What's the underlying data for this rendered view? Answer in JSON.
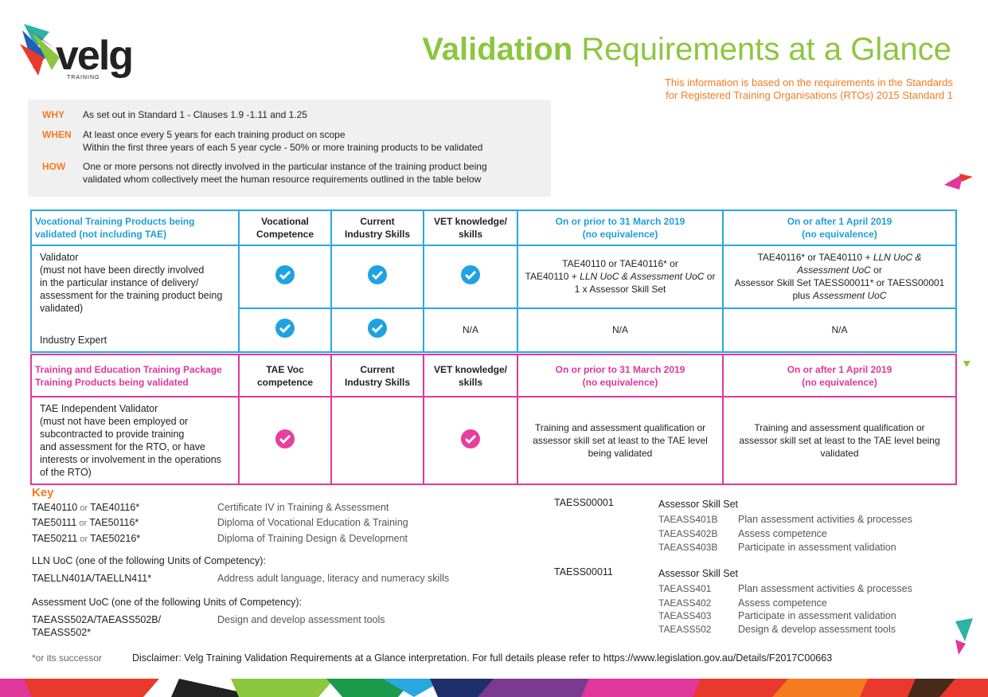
{
  "logo": {
    "name": "velg",
    "tagline": "TRAINING"
  },
  "header": {
    "title_highlight": "Validation",
    "title": "Requirements at a Glance",
    "subtitle": [
      "This information is based on the requirements in the Standards",
      "for Registered Training Organisations (RTOs) 2015 Standard 1"
    ]
  },
  "info": [
    {
      "label": "WHY",
      "lines": [
        "As set out in Standard 1 - Clauses 1.9 -1.11 and 1.25"
      ]
    },
    {
      "label": "WHEN",
      "lines": [
        "At least once every 5 years for each training product on scope",
        "Within the first three years of each 5 year cycle - 50% or more training products to be validated"
      ]
    },
    {
      "label": "HOW",
      "lines": [
        "One or more persons not directly involved in the particular instance of the training product being",
        "validated whom collectively meet the human resource requirements outlined in the table below"
      ]
    }
  ],
  "table1": {
    "headers": [
      [
        "Vocational Training Products being",
        "validated (not including TAE)"
      ],
      [
        "Vocational",
        "Competence"
      ],
      [
        "Current",
        "Industry Skills"
      ],
      [
        "VET knowledge/",
        "skills"
      ],
      [
        "On or prior to 31 March 2019",
        "(no equivalence)"
      ],
      [
        "On or after 1 April 2019",
        "(no equivalence)"
      ]
    ],
    "label": {
      "title": "Validator",
      "lines": [
        "(must not have been directly involved",
        "in the particular instance of delivery/",
        "assessment for the training product being",
        "validated)"
      ],
      "second": "Industry Expert"
    },
    "rows": [
      [
        {
          "check": true
        },
        {
          "check": true
        },
        {
          "check": true
        },
        {
          "lines": [
            [
              {
                "t": "TAE40110 or TAE40116* or"
              }
            ],
            [
              {
                "t": "TAE40110 + "
              },
              {
                "em": "LLN UoC & Assessment UoC"
              },
              {
                "t": " or"
              }
            ],
            [
              {
                "t": "1 x Assessor Skill Set"
              }
            ]
          ]
        },
        {
          "lines": [
            [
              {
                "t": "TAE40116* or TAE40110 + "
              },
              {
                "em": "LLN UoC &"
              }
            ],
            [
              {
                "em": "Assessment UoC"
              },
              {
                "t": " or"
              }
            ],
            [
              {
                "t": "Assessor Skill Set TAESS00011* or TAESS00001"
              }
            ],
            [
              {
                "t": "plus "
              },
              {
                "em": "Assessment UoC"
              }
            ]
          ]
        }
      ],
      [
        {
          "check": true
        },
        {
          "check": true
        },
        {
          "lines": [
            [
              {
                "t": "N/A"
              }
            ]
          ]
        },
        {
          "lines": [
            [
              {
                "t": "N/A"
              }
            ]
          ]
        },
        {
          "lines": [
            [
              {
                "t": "N/A"
              }
            ]
          ]
        }
      ]
    ]
  },
  "table2": {
    "headers": [
      [
        "Training and Education Training Package",
        "Training Products being validated"
      ],
      [
        "TAE Voc",
        "competence"
      ],
      [
        "Current",
        "Industry Skills"
      ],
      [
        "VET knowledge/",
        "skills"
      ],
      [
        "On or prior to 31 March 2019",
        "(no equivalence)"
      ],
      [
        "On or after 1 April 2019",
        "(no equivalence)"
      ]
    ],
    "label": {
      "title": "TAE Independent Validator",
      "lines": [
        "(must not have been employed or",
        "subcontracted to provide training",
        "and assessment for the RTO, or have",
        "interests or involvement in the operations",
        "of the RTO)"
      ]
    },
    "rows": [
      [
        {
          "check": true
        },
        {
          "check": false
        },
        {
          "check": true
        },
        {
          "lines": [
            [
              {
                "t": "Training and assessment qualification or"
              }
            ],
            [
              {
                "t": "assessor skill set at least to the TAE level"
              }
            ],
            [
              {
                "t": "being validated"
              }
            ]
          ]
        },
        {
          "lines": [
            [
              {
                "t": "Training and assessment qualification or"
              }
            ],
            [
              {
                "t": "assessor skill set at least to the TAE level being"
              }
            ],
            [
              {
                "t": "validated"
              }
            ]
          ]
        }
      ]
    ]
  },
  "key": {
    "title": "Key",
    "left": [
      {
        "code": [
          [
            {
              "t": "TAE40110"
            },
            {
              "light": " or "
            },
            {
              "t": "TAE40116*"
            }
          ]
        ],
        "desc": "Certificate IV in Training & Assessment"
      },
      {
        "code": [
          [
            {
              "t": "TAE50111"
            },
            {
              "light": " or "
            },
            {
              "t": "TAE50116*"
            }
          ]
        ],
        "desc": "Diploma of Vocational Education & Training"
      },
      {
        "code": [
          [
            {
              "t": "TAE50211"
            },
            {
              "light": " or "
            },
            {
              "t": "TAE50216*"
            }
          ]
        ],
        "desc": "Diploma of Training Design & Development"
      },
      {
        "heading": "LLN UoC (one of the following Units of Competency):"
      },
      {
        "code": [
          [
            {
              "t": "TAELLN401A/TAELLN411*"
            }
          ]
        ],
        "desc": "Address adult language, literacy and numeracy skills"
      },
      {
        "heading": "Assessment UoC (one of the following Units of Competency):"
      },
      {
        "code": [
          [
            {
              "t": "TAEASS502A/TAEASS502B/"
            }
          ],
          [
            {
              "t": "TAEASS502*"
            }
          ]
        ],
        "desc": "Design and develop assessment tools"
      }
    ],
    "sets": [
      {
        "code": "TAESS00001",
        "title": "Assessor Skill Set",
        "units": [
          [
            "TAEASS401B",
            "Plan assessment activities & processes"
          ],
          [
            "TAEASS402B",
            "Assess competence"
          ],
          [
            "TAEASS403B",
            "Participate in assessment validation"
          ]
        ]
      },
      {
        "code": "TAESS00011",
        "title": "Assessor Skill Set",
        "units": [
          [
            "TAEASS401",
            "Plan assessment activities & processes"
          ],
          [
            "TAEASS402",
            "Assess competence"
          ],
          [
            "TAEASS403",
            "Participate in assessment validation"
          ],
          [
            "TAEASS502",
            "Design & develop assessment tools"
          ]
        ]
      }
    ]
  },
  "footer": {
    "note": "*or its successor",
    "disclaimer": "Disclaimer: Velg Training Validation Requirements at a Glance interpretation.  For full details please refer to https://www.legislation.gov.au/Details/F2017C00663"
  }
}
